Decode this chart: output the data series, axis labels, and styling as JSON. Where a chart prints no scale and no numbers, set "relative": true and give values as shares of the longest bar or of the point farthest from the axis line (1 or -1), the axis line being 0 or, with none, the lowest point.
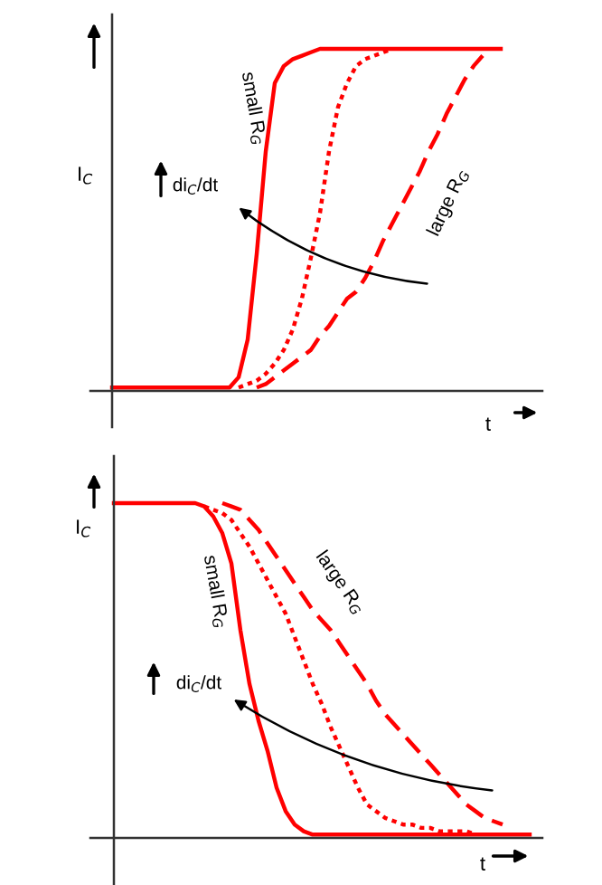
{
  "chart_data": [
    {
      "type": "line",
      "relative": true,
      "xlabel": "t",
      "ylabel": "I$_{C}$",
      "categories": [
        null,
        null,
        null,
        null,
        null,
        null,
        null,
        null,
        null,
        null,
        null,
        null,
        null,
        null,
        null,
        null,
        null,
        null,
        null,
        null,
        null,
        null,
        null,
        null,
        null,
        null,
        null,
        null,
        null,
        null,
        null,
        null,
        null,
        null,
        null,
        null,
        null,
        null,
        null,
        null,
        null,
        null,
        null,
        null,
        null
      ],
      "series": [
        {
          "color": "#ff0000",
          "line_style": "solid",
          "values": [
            0.01,
            0.01,
            0.01,
            0.01,
            0.01,
            0.01,
            0.01,
            0.01,
            0.01,
            0.01,
            0.01,
            0.01,
            0.01,
            0.01,
            0.04,
            0.15,
            0.4,
            0.7,
            0.9,
            0.95,
            0.97,
            0.98,
            0.99,
            1.0,
            1.0,
            1.0,
            1.0,
            1.0,
            1.0,
            1.0,
            1.0,
            1.0,
            1.0,
            1.0,
            1.0,
            1.0,
            1.0,
            1.0,
            1.0,
            1.0,
            1.0,
            1.0,
            1.0,
            1.0,
            null
          ]
        },
        {
          "color": "#ff0000",
          "line_style": "dotted",
          "values": [
            null,
            null,
            null,
            null,
            null,
            null,
            null,
            null,
            null,
            null,
            null,
            null,
            null,
            null,
            0.01,
            0.02,
            0.03,
            0.05,
            0.08,
            0.12,
            0.18,
            0.27,
            0.39,
            0.52,
            0.7,
            0.83,
            0.9,
            0.95,
            0.97,
            0.98,
            0.99,
            1.0,
            null,
            null,
            null,
            null,
            null,
            null,
            null,
            null,
            null,
            null,
            null,
            null,
            null
          ]
        },
        {
          "color": "#ff0000",
          "line_style": "dashed",
          "values": [
            null,
            null,
            null,
            null,
            null,
            null,
            null,
            null,
            null,
            null,
            null,
            null,
            null,
            null,
            null,
            null,
            0.01,
            0.02,
            0.04,
            0.06,
            0.08,
            0.1,
            0.12,
            0.16,
            0.19,
            0.23,
            0.27,
            0.29,
            0.33,
            0.38,
            0.44,
            0.49,
            0.54,
            0.59,
            0.64,
            0.7,
            0.75,
            0.81,
            0.86,
            0.91,
            0.95,
            0.98,
            null,
            null,
            null
          ]
        }
      ],
      "annotations": [
        "small R$_{G}$",
        "large R$_{G}$",
        "di$_{C}$/dt"
      ]
    },
    {
      "type": "line",
      "relative": true,
      "xlabel": "t",
      "ylabel": "I$_{C}$",
      "categories": [
        null,
        null,
        null,
        null,
        null,
        null,
        null,
        null,
        null,
        null,
        null,
        null,
        null,
        null,
        null,
        null,
        null,
        null,
        null,
        null,
        null,
        null,
        null,
        null,
        null,
        null,
        null,
        null,
        null,
        null,
        null,
        null,
        null,
        null,
        null,
        null,
        null,
        null,
        null,
        null,
        null,
        null,
        null,
        null,
        null,
        null,
        null
      ],
      "series": [
        {
          "color": "#ff0000",
          "line_style": "solid",
          "values": [
            1.0,
            1.0,
            1.0,
            1.0,
            1.0,
            1.0,
            1.0,
            1.0,
            1.0,
            1.0,
            0.99,
            0.96,
            0.91,
            0.82,
            0.62,
            0.46,
            0.35,
            0.26,
            0.15,
            0.08,
            0.04,
            0.02,
            0.01,
            0.01,
            0.01,
            0.01,
            0.01,
            0.01,
            0.01,
            0.01,
            0.01,
            0.01,
            0.01,
            0.01,
            0.01,
            0.01,
            0.01,
            0.01,
            0.01,
            0.01,
            0.01,
            0.01,
            0.01,
            0.01,
            0.01,
            0.01,
            0.01
          ]
        },
        {
          "color": "#ff0000",
          "line_style": "dotted",
          "values": [
            null,
            null,
            null,
            null,
            null,
            null,
            null,
            null,
            null,
            null,
            0.99,
            0.98,
            0.97,
            0.95,
            0.91,
            0.87,
            0.82,
            0.77,
            0.72,
            0.67,
            0.6,
            0.53,
            0.46,
            0.4,
            0.33,
            0.27,
            0.21,
            0.15,
            0.1,
            0.08,
            0.06,
            0.05,
            0.04,
            0.04,
            0.03,
            0.03,
            0.02,
            0.02,
            0.02,
            0.02,
            0.01,
            null,
            null,
            null,
            null,
            null,
            null
          ]
        },
        {
          "color": "#ff0000",
          "line_style": "dashed",
          "values": [
            null,
            null,
            null,
            null,
            null,
            null,
            null,
            null,
            null,
            null,
            null,
            null,
            1.0,
            0.99,
            0.98,
            0.95,
            0.92,
            0.88,
            0.84,
            0.8,
            0.76,
            0.72,
            0.68,
            0.65,
            0.62,
            0.58,
            0.54,
            0.5,
            0.46,
            0.41,
            0.37,
            0.34,
            0.31,
            0.28,
            0.25,
            0.22,
            0.19,
            0.16,
            0.13,
            0.1,
            0.08,
            0.06,
            0.05,
            0.04,
            null,
            null,
            null
          ]
        }
      ],
      "annotations": [
        "small R$_{G}$",
        "large R$_{G}$",
        "di$_{C}$/dt"
      ]
    }
  ]
}
